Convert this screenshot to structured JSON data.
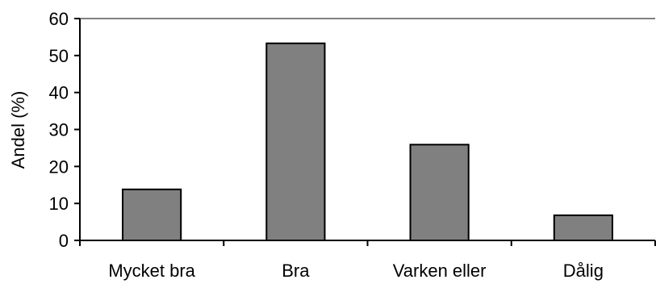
{
  "chart_data": {
    "type": "bar",
    "title": "",
    "xlabel": "",
    "ylabel": "Andel (%)",
    "categories": [
      "Mycket bra",
      "Bra",
      "Varken eller",
      "Dålig"
    ],
    "values": [
      13.8,
      53.3,
      25.9,
      6.8
    ],
    "ylim": [
      0,
      60
    ],
    "yticks": [
      "0",
      "10",
      "20",
      "30",
      "40",
      "50",
      "60"
    ],
    "grid": false,
    "legend": "none",
    "colors": {
      "bar_fill": "#808080",
      "bar_stroke": "#000000",
      "axis": "#000000",
      "top_line": "#808080"
    }
  }
}
